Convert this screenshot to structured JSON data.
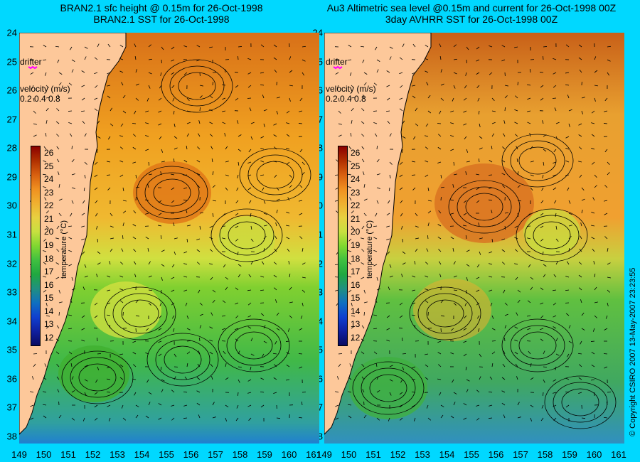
{
  "left_panel": {
    "title_line1": "BRAN2.1 sfc height @ 0.15m for 26-Oct-1998",
    "title_line2": "BRAN2.1 SST for 26-Oct-1998"
  },
  "right_panel": {
    "title_line1": "Au3 Altimetric sea level  @0.15m and current for 26-Oct-1998 00Z",
    "title_line2": "3day AVHRR SST for 26-Oct-1998 00Z"
  },
  "legend": {
    "drifter_label": "drifter",
    "velocity_label": "velocity (m/s)",
    "velocity_scale": "0.2 0.4 0.8"
  },
  "colorbar": {
    "label": "temperature (°C)",
    "ticks": [
      "26",
      "25",
      "24",
      "23",
      "22",
      "21",
      "20",
      "19",
      "18",
      "17",
      "16",
      "15",
      "14",
      "13",
      "12"
    ]
  },
  "axes": {
    "lat_labels": [
      "24",
      "25",
      "26",
      "27",
      "28",
      "29",
      "30",
      "31",
      "32",
      "33",
      "34",
      "35",
      "36",
      "37",
      "38"
    ],
    "lon_labels": [
      "149",
      "150",
      "151",
      "152",
      "153",
      "154",
      "155",
      "156",
      "157",
      "158",
      "159",
      "160",
      "161"
    ]
  },
  "copyright": "© Copyright CSIRO 2007   13-May-2007 23:23:55",
  "colors": {
    "land": "#fdc89a",
    "background": "#00d8ff",
    "drifter": "#ff00ff"
  }
}
